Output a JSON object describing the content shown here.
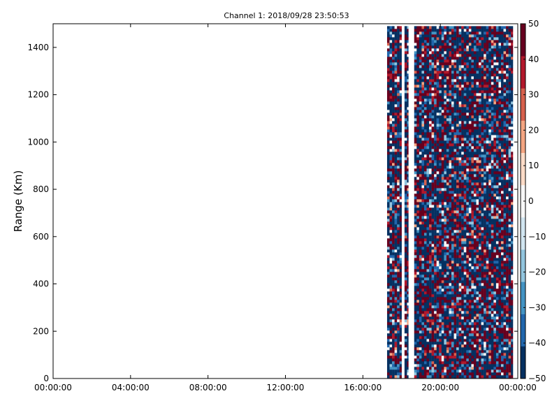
{
  "chart_data": {
    "type": "heatmap",
    "title": "Channel 1: 2018/09/28 23:50:53",
    "xlabel": "",
    "ylabel": "Range (Km)",
    "x_ticks": [
      "00:00:00",
      "04:00:00",
      "08:00:00",
      "12:00:00",
      "16:00:00",
      "20:00:00",
      "00:00:00"
    ],
    "x_range_hours": [
      0,
      24
    ],
    "y_ticks": [
      0,
      200,
      400,
      600,
      800,
      1000,
      1200,
      1400
    ],
    "y_range": [
      0,
      1500
    ],
    "colorbar": {
      "ticks": [
        "50",
        "40",
        "30",
        "20",
        "10",
        "0",
        "−10",
        "−20",
        "−30",
        "−40",
        "−50"
      ],
      "range": [
        -50,
        50
      ],
      "colormap": "RdBu_r",
      "colors": [
        "#053061",
        "#2166ac",
        "#4393c3",
        "#92c5de",
        "#d1e5f0",
        "#f7f7f7",
        "#fddbc7",
        "#f4a582",
        "#d6604d",
        "#b2182b",
        "#67001f"
      ]
    },
    "data_segments_hours": [
      {
        "start": 17.25,
        "end": 18.0
      },
      {
        "start": 18.15,
        "end": 18.35
      },
      {
        "start": 18.65,
        "end": 23.75
      }
    ],
    "grid": false
  }
}
